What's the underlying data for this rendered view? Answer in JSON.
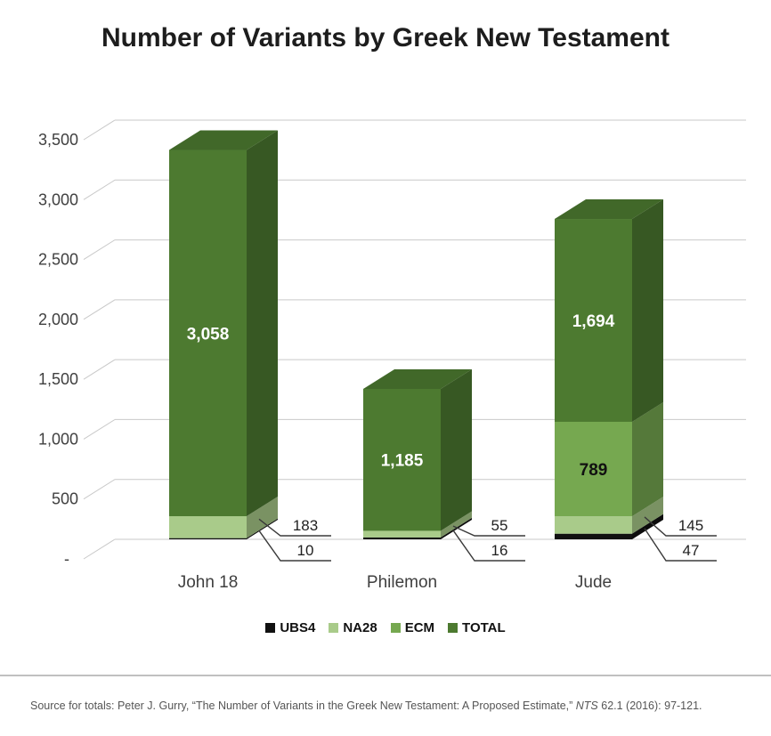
{
  "title": "Number of Variants by Greek New Testament",
  "chart_data": {
    "type": "bar",
    "stacked": true,
    "projection": "3d",
    "title": "Number of Variants by Greek New Testament",
    "categories": [
      "John 18",
      "Philemon",
      "Jude"
    ],
    "series": [
      {
        "name": "UBS4",
        "color": "#111111",
        "values": [
          10,
          16,
          47
        ]
      },
      {
        "name": "NA28",
        "color": "#a9cb8a",
        "values": [
          183,
          55,
          145
        ]
      },
      {
        "name": "ECM",
        "color": "#76a850",
        "values": [
          0,
          0,
          789
        ]
      },
      {
        "name": "TOTAL",
        "color": "#4d7a30",
        "values": [
          3058,
          1185,
          1694
        ]
      }
    ],
    "y_ticks": [
      {
        "label": "3,500",
        "value": 3500
      },
      {
        "label": "3,000",
        "value": 3000
      },
      {
        "label": "2,500",
        "value": 2500
      },
      {
        "label": "2,000",
        "value": 2000
      },
      {
        "label": "1,500",
        "value": 1500
      },
      {
        "label": "1,000",
        "value": 1000
      },
      {
        "label": "500",
        "value": 500
      },
      {
        "label": "-",
        "value": 0
      }
    ],
    "ylim": [
      0,
      3500
    ],
    "gridlines": true,
    "legend_position": "bottom",
    "bar_totals": {
      "John 18": 3251,
      "Philemon": 1256,
      "Jude": 2675
    }
  },
  "footer": {
    "source_prefix": "Source for totals: Peter J. Gurry, “The Number of Variants in the Greek New Testament: A Proposed Estimate,” ",
    "source_italic": "NTS",
    "source_suffix": " 62.1 (2016): 97-121."
  }
}
